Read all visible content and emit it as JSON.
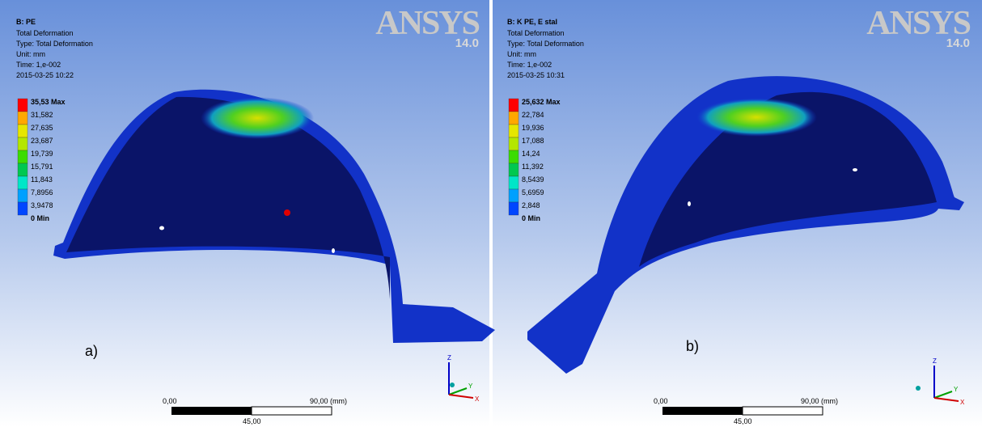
{
  "panels": [
    {
      "title": "B: PE",
      "lines": [
        "Total Deformation",
        "Type: Total Deformation",
        "Unit: mm",
        "Time: 1,e-002",
        "2015-03-25 10:22"
      ],
      "legend": [
        "35,53 Max",
        "31,582",
        "27,635",
        "23,687",
        "19,739",
        "15,791",
        "11,843",
        "7,8956",
        "3,9478",
        "0 Min"
      ],
      "brand": "ANSYS",
      "version": "14.0",
      "scale": [
        "0,00",
        "90,00 (mm)",
        "45,00"
      ],
      "label": "a)",
      "axes": [
        "Z",
        "Y",
        "X"
      ]
    },
    {
      "title": "B: K PE, E stal",
      "lines": [
        "Total Deformation",
        "Type: Total Deformation",
        "Unit: mm",
        "Time: 1,e-002",
        "2015-03-25 10:31"
      ],
      "legend": [
        "25,632 Max",
        "22,784",
        "19,936",
        "17,088",
        "14,24",
        "11,392",
        "8,5439",
        "5,6959",
        "2,848",
        "0 Min"
      ],
      "brand": "ANSYS",
      "version": "14.0",
      "scale": [
        "0,00",
        "90,00 (mm)",
        "45,00"
      ],
      "label": "b)",
      "axes": [
        "Z",
        "Y",
        "X"
      ]
    }
  ]
}
